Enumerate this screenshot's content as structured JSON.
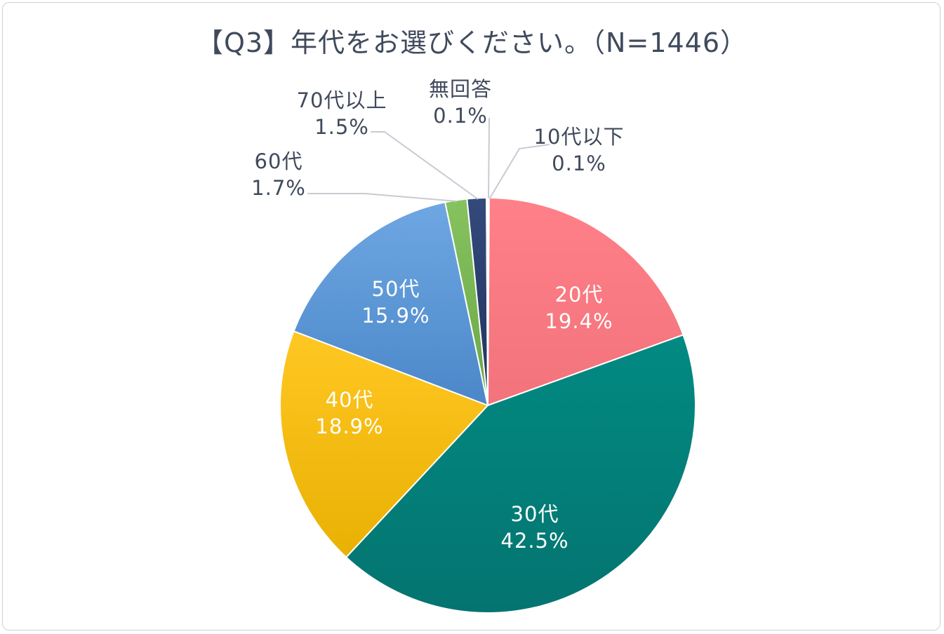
{
  "chart_data": {
    "type": "pie",
    "title": "【Q3】年代をお選びください。（N=1446）",
    "start_angle": "12 o'clock",
    "direction": "clockwise",
    "slices": [
      {
        "category": "10代以下",
        "value": 0.1,
        "display": "0.1%",
        "color": "#7fa0c8",
        "label_color": "#404a5c",
        "label_position": "outside-right"
      },
      {
        "category": "20代",
        "value": 19.4,
        "display": "19.4%",
        "color": "#fb7d84",
        "label_color": "#ffffff",
        "label_position": "inside"
      },
      {
        "category": "30代",
        "value": 42.5,
        "display": "42.5%",
        "color": "#038079",
        "label_color": "#ffffff",
        "label_position": "inside"
      },
      {
        "category": "40代",
        "value": 18.9,
        "display": "18.9%",
        "color": "#fcc40e",
        "label_color": "#ffffff",
        "label_position": "inside"
      },
      {
        "category": "50代",
        "value": 15.9,
        "display": "15.9%",
        "color": "#5d99d7",
        "label_color": "#ffffff",
        "label_position": "inside"
      },
      {
        "category": "60代",
        "value": 1.7,
        "display": "1.7%",
        "color": "#7ab555",
        "label_color": "#404a5c",
        "label_position": "outside-left"
      },
      {
        "category": "70代以上",
        "value": 1.5,
        "display": "1.5%",
        "color": "#2b3d6b",
        "label_color": "#404a5c",
        "label_position": "outside-top"
      },
      {
        "category": "無回答",
        "value": 0.1,
        "display": "0.1%",
        "color": "#6c7f9a",
        "label_color": "#404a5c",
        "label_position": "outside-top"
      }
    ]
  }
}
